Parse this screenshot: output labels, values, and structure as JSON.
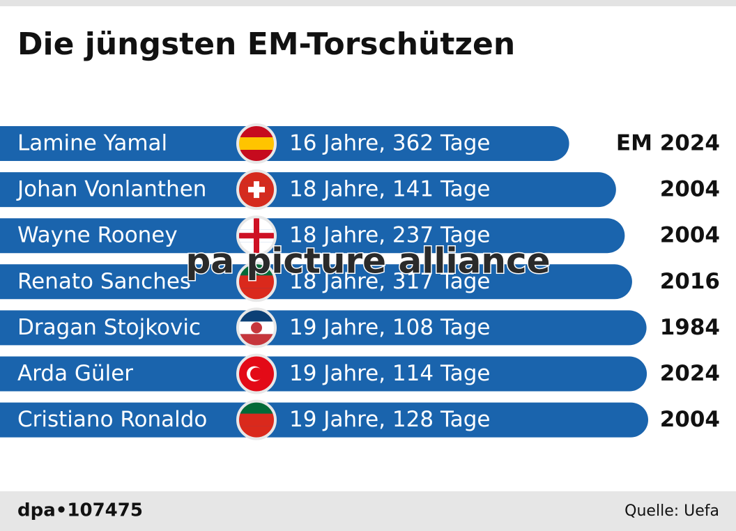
{
  "chart_data": {
    "type": "bar",
    "title": "Die jüngsten EM-Torschützen",
    "categories": [
      "Lamine Yamal",
      "Johan Vonlanthen",
      "Wayne Rooney",
      "Renato Sanches",
      "Dragan Stojkovic",
      "Arda Güler",
      "Cristiano Ronaldo"
    ],
    "values": [
      16.99,
      18.39,
      18.65,
      18.87,
      19.3,
      19.31,
      19.35
    ],
    "value_labels": [
      "16 Jahre, 362 Tage",
      "18 Jahre, 141 Tage",
      "18 Jahre, 237 Tage",
      "18 Jahre, 317 Tage",
      "19 Jahre, 108 Tage",
      "19 Jahre, 114 Tage",
      "19 Jahre, 128 Tage"
    ],
    "years": [
      "EM 2024",
      "2004",
      "2004",
      "2016",
      "1984",
      "2024",
      "2004"
    ],
    "color": "#1a64ad",
    "watermark": "pa picture alliance",
    "footer_left": "dpa•107475",
    "source": "Quelle: Uefa"
  }
}
